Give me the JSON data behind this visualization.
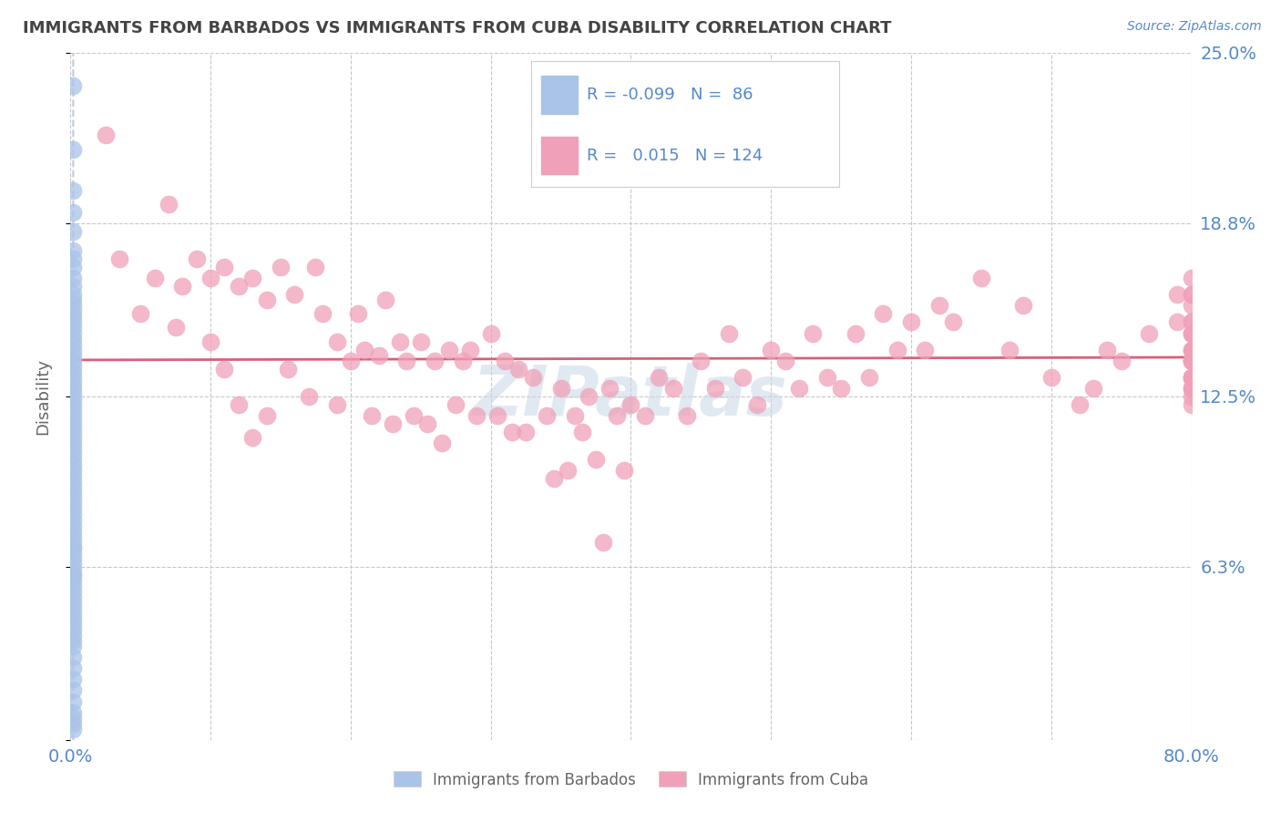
{
  "title": "IMMIGRANTS FROM BARBADOS VS IMMIGRANTS FROM CUBA DISABILITY CORRELATION CHART",
  "source": "Source: ZipAtlas.com",
  "ylabel": "Disability",
  "xlim": [
    0.0,
    0.8
  ],
  "ylim": [
    0.0,
    0.25
  ],
  "legend_R_barbados": "-0.099",
  "legend_N_barbados": "86",
  "legend_R_cuba": "0.015",
  "legend_N_cuba": "124",
  "barbados_color": "#aac4e8",
  "cuba_color": "#f0a0b8",
  "trendline_barbados_color": "#c0ccd8",
  "trendline_cuba_color": "#d8607a",
  "watermark_zip": "ZIP",
  "watermark_atlas": "atlas",
  "background_color": "#ffffff",
  "grid_color": "#c8c8c8",
  "title_color": "#444444",
  "tick_color": "#5588cc",
  "barbados_x": [
    0.002,
    0.002,
    0.002,
    0.002,
    0.002,
    0.002,
    0.002,
    0.002,
    0.002,
    0.002,
    0.002,
    0.002,
    0.002,
    0.002,
    0.002,
    0.002,
    0.002,
    0.002,
    0.002,
    0.002,
    0.002,
    0.002,
    0.002,
    0.002,
    0.002,
    0.002,
    0.002,
    0.002,
    0.002,
    0.002,
    0.002,
    0.002,
    0.002,
    0.002,
    0.002,
    0.002,
    0.002,
    0.002,
    0.002,
    0.002,
    0.002,
    0.002,
    0.002,
    0.002,
    0.002,
    0.002,
    0.002,
    0.002,
    0.002,
    0.002,
    0.002,
    0.002,
    0.002,
    0.002,
    0.002,
    0.002,
    0.002,
    0.002,
    0.002,
    0.002,
    0.002,
    0.002,
    0.002,
    0.002,
    0.002,
    0.002,
    0.002,
    0.002,
    0.002,
    0.002,
    0.002,
    0.002,
    0.002,
    0.002,
    0.002,
    0.002,
    0.002,
    0.002,
    0.002,
    0.002,
    0.002,
    0.002,
    0.002,
    0.002,
    0.002,
    0.002
  ],
  "barbados_y": [
    0.238,
    0.215,
    0.2,
    0.192,
    0.185,
    0.178,
    0.175,
    0.172,
    0.168,
    0.165,
    0.162,
    0.16,
    0.158,
    0.156,
    0.154,
    0.152,
    0.15,
    0.148,
    0.146,
    0.144,
    0.142,
    0.14,
    0.138,
    0.136,
    0.134,
    0.132,
    0.13,
    0.128,
    0.126,
    0.124,
    0.122,
    0.12,
    0.118,
    0.116,
    0.114,
    0.112,
    0.11,
    0.108,
    0.106,
    0.104,
    0.102,
    0.1,
    0.098,
    0.096,
    0.094,
    0.092,
    0.09,
    0.088,
    0.086,
    0.084,
    0.082,
    0.08,
    0.078,
    0.076,
    0.074,
    0.072,
    0.07,
    0.068,
    0.066,
    0.064,
    0.062,
    0.06,
    0.058,
    0.056,
    0.054,
    0.052,
    0.05,
    0.048,
    0.046,
    0.044,
    0.042,
    0.04,
    0.038,
    0.036,
    0.034,
    0.03,
    0.026,
    0.022,
    0.018,
    0.014,
    0.01,
    0.008,
    0.006,
    0.004,
    0.07,
    0.06
  ],
  "cuba_x": [
    0.025,
    0.035,
    0.05,
    0.06,
    0.07,
    0.075,
    0.08,
    0.09,
    0.1,
    0.1,
    0.11,
    0.11,
    0.12,
    0.12,
    0.13,
    0.13,
    0.14,
    0.14,
    0.15,
    0.155,
    0.16,
    0.17,
    0.175,
    0.18,
    0.19,
    0.19,
    0.2,
    0.205,
    0.21,
    0.215,
    0.22,
    0.225,
    0.23,
    0.235,
    0.24,
    0.245,
    0.25,
    0.255,
    0.26,
    0.265,
    0.27,
    0.275,
    0.28,
    0.285,
    0.29,
    0.3,
    0.305,
    0.31,
    0.315,
    0.32,
    0.325,
    0.33,
    0.34,
    0.345,
    0.35,
    0.355,
    0.36,
    0.365,
    0.37,
    0.375,
    0.38,
    0.385,
    0.39,
    0.395,
    0.4,
    0.41,
    0.42,
    0.43,
    0.44,
    0.45,
    0.46,
    0.47,
    0.48,
    0.49,
    0.5,
    0.51,
    0.52,
    0.53,
    0.54,
    0.55,
    0.56,
    0.57,
    0.58,
    0.59,
    0.6,
    0.61,
    0.62,
    0.63,
    0.65,
    0.67,
    0.68,
    0.7,
    0.72,
    0.73,
    0.74,
    0.75,
    0.77,
    0.79,
    0.79,
    0.8,
    0.8,
    0.8,
    0.8,
    0.8,
    0.8,
    0.8,
    0.8,
    0.8,
    0.8,
    0.8,
    0.8,
    0.8,
    0.8,
    0.8,
    0.8,
    0.8,
    0.8,
    0.8,
    0.8,
    0.8,
    0.8,
    0.8,
    0.8,
    0.8
  ],
  "cuba_y": [
    0.22,
    0.175,
    0.155,
    0.168,
    0.195,
    0.15,
    0.165,
    0.175,
    0.145,
    0.168,
    0.172,
    0.135,
    0.165,
    0.122,
    0.168,
    0.11,
    0.16,
    0.118,
    0.172,
    0.135,
    0.162,
    0.125,
    0.172,
    0.155,
    0.145,
    0.122,
    0.138,
    0.155,
    0.142,
    0.118,
    0.14,
    0.16,
    0.115,
    0.145,
    0.138,
    0.118,
    0.145,
    0.115,
    0.138,
    0.108,
    0.142,
    0.122,
    0.138,
    0.142,
    0.118,
    0.148,
    0.118,
    0.138,
    0.112,
    0.135,
    0.112,
    0.132,
    0.118,
    0.095,
    0.128,
    0.098,
    0.118,
    0.112,
    0.125,
    0.102,
    0.072,
    0.128,
    0.118,
    0.098,
    0.122,
    0.118,
    0.132,
    0.128,
    0.118,
    0.138,
    0.128,
    0.148,
    0.132,
    0.122,
    0.142,
    0.138,
    0.128,
    0.148,
    0.132,
    0.128,
    0.148,
    0.132,
    0.155,
    0.142,
    0.152,
    0.142,
    0.158,
    0.152,
    0.168,
    0.142,
    0.158,
    0.132,
    0.122,
    0.128,
    0.142,
    0.138,
    0.148,
    0.152,
    0.162,
    0.168,
    0.132,
    0.138,
    0.142,
    0.128,
    0.148,
    0.152,
    0.162,
    0.132,
    0.138,
    0.128,
    0.142,
    0.148,
    0.158,
    0.132,
    0.122,
    0.128,
    0.142,
    0.152,
    0.138,
    0.148,
    0.162,
    0.132,
    0.125,
    0.138
  ]
}
